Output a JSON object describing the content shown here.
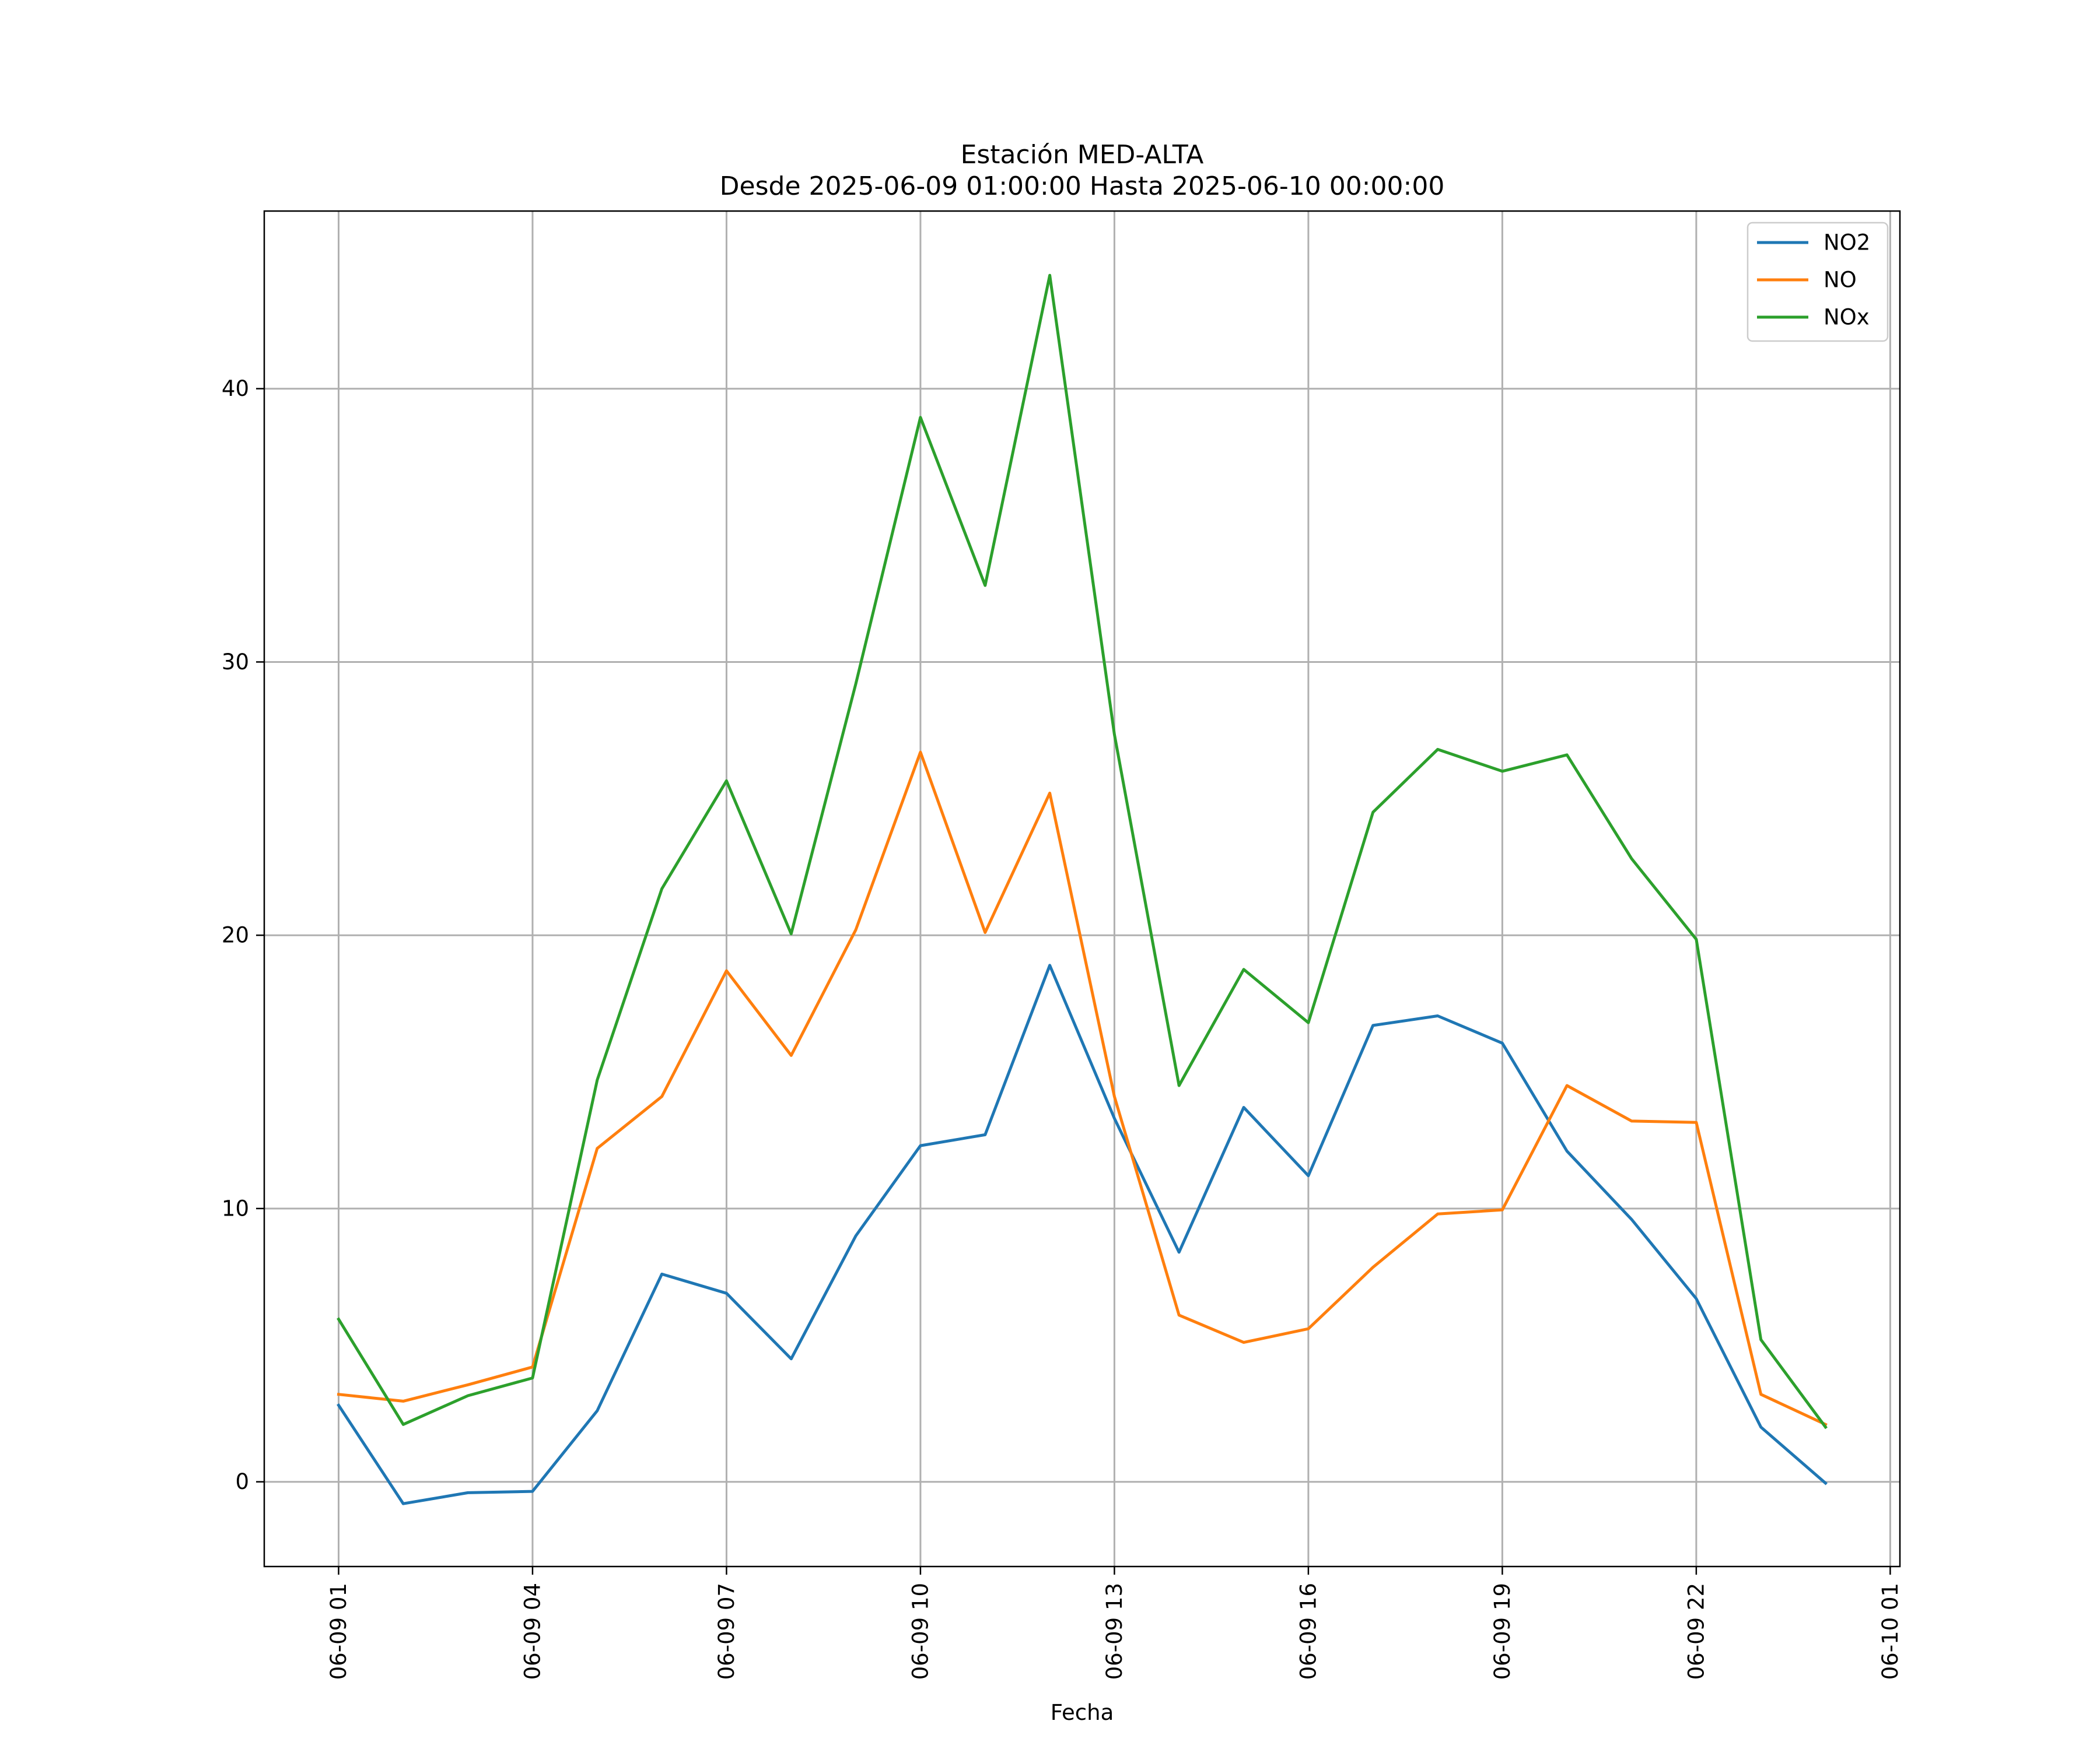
{
  "chart_data": {
    "type": "line",
    "title": "Estación MED-ALTA",
    "subtitle": "Desde 2025-06-09 01:00:00 Hasta 2025-06-10 00:00:00",
    "xlabel": "Fecha",
    "ylabel": "",
    "x": [
      "2025-06-09 01:00",
      "2025-06-09 02:00",
      "2025-06-09 03:00",
      "2025-06-09 04:00",
      "2025-06-09 05:00",
      "2025-06-09 06:00",
      "2025-06-09 07:00",
      "2025-06-09 08:00",
      "2025-06-09 09:00",
      "2025-06-09 10:00",
      "2025-06-09 11:00",
      "2025-06-09 12:00",
      "2025-06-09 13:00",
      "2025-06-09 14:00",
      "2025-06-09 15:00",
      "2025-06-09 16:00",
      "2025-06-09 17:00",
      "2025-06-09 18:00",
      "2025-06-09 19:00",
      "2025-06-09 20:00",
      "2025-06-09 21:00",
      "2025-06-09 22:00",
      "2025-06-09 23:00",
      "2025-06-10 00:00"
    ],
    "series": [
      {
        "name": "NO2",
        "color": "#1f77b4",
        "values": [
          2.8,
          -0.8,
          -0.4,
          -0.35,
          2.6,
          7.6,
          6.9,
          4.5,
          9.0,
          12.3,
          12.7,
          18.9,
          13.3,
          8.4,
          13.7,
          11.2,
          16.7,
          17.05,
          16.05,
          12.1,
          9.6,
          6.7,
          2.0,
          -0.05
        ]
      },
      {
        "name": "NO",
        "color": "#ff7f0e",
        "values": [
          3.2,
          2.95,
          3.55,
          4.2,
          12.2,
          14.1,
          18.7,
          15.6,
          20.2,
          26.7,
          20.1,
          25.2,
          14.1,
          6.1,
          5.1,
          5.6,
          7.85,
          9.8,
          9.95,
          14.5,
          13.2,
          13.15,
          3.2,
          2.1
        ]
      },
      {
        "name": "NOx",
        "color": "#2ca02c",
        "values": [
          5.95,
          2.1,
          3.15,
          3.8,
          14.7,
          21.7,
          25.65,
          20.05,
          29.2,
          38.95,
          32.8,
          44.15,
          27.35,
          14.5,
          18.75,
          16.8,
          24.5,
          26.8,
          26.0,
          26.6,
          22.8,
          19.85,
          5.2,
          2.0
        ]
      }
    ],
    "xticks": [
      "06-09 01",
      "06-09 04",
      "06-09 07",
      "06-09 10",
      "06-09 13",
      "06-09 16",
      "06-09 19",
      "06-09 22",
      "06-10 01"
    ],
    "yticks": [
      0,
      10,
      20,
      30,
      40
    ],
    "xlim": [
      "2025-06-08 23:51",
      "2025-06-10 01:09"
    ],
    "ylim": [
      -3.1,
      46.5
    ],
    "grid": true,
    "legend": "top-right"
  }
}
